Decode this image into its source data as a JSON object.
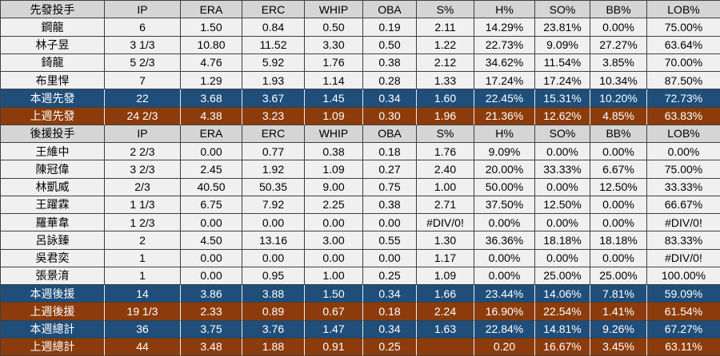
{
  "colors": {
    "header_bg": "#d5d5d5",
    "row_bg": "#f0f0f0",
    "blue": "#1f4e7a",
    "brown": "#8c3c0c",
    "grid": "#404040",
    "grid_light": "#e8e8e8",
    "text_dark": "#000000",
    "text_light": "#ffffff"
  },
  "table": {
    "column_headers": [
      "IP",
      "ERA",
      "ERC",
      "WHIP",
      "OBA",
      "S%",
      "H%",
      "SO%",
      "BB%",
      "LOB%"
    ],
    "section_titles": [
      "先發投手",
      "後援投手"
    ],
    "rows": [
      {
        "style": "header",
        "cells": [
          "先發投手",
          "IP",
          "ERA",
          "ERC",
          "WHIP",
          "OBA",
          "S%",
          "H%",
          "SO%",
          "BB%",
          "LOB%"
        ]
      },
      {
        "style": "player",
        "cells": [
          "鋼龍",
          "6",
          "1.50",
          "0.84",
          "0.50",
          "0.19",
          "2.11",
          "14.29%",
          "23.81%",
          "0.00%",
          "75.00%"
        ]
      },
      {
        "style": "player",
        "cells": [
          "林子昱",
          "3 1/3",
          "10.80",
          "11.52",
          "3.30",
          "0.50",
          "1.22",
          "22.73%",
          "9.09%",
          "27.27%",
          "63.64%"
        ]
      },
      {
        "style": "player",
        "cells": [
          "錡龍",
          "5 2/3",
          "4.76",
          "5.92",
          "1.76",
          "0.38",
          "2.12",
          "34.62%",
          "11.54%",
          "3.85%",
          "70.00%"
        ]
      },
      {
        "style": "player",
        "cells": [
          "布里悍",
          "7",
          "1.29",
          "1.93",
          "1.14",
          "0.28",
          "1.33",
          "17.24%",
          "17.24%",
          "10.34%",
          "87.50%"
        ]
      },
      {
        "style": "week-blue",
        "cells": [
          "本週先發",
          "22",
          "3.68",
          "3.67",
          "1.45",
          "0.34",
          "1.60",
          "22.45%",
          "15.31%",
          "10.20%",
          "72.73%"
        ]
      },
      {
        "style": "week-brown",
        "cells": [
          "上週先發",
          "24 2/3",
          "4.38",
          "3.23",
          "1.09",
          "0.30",
          "1.96",
          "21.36%",
          "12.62%",
          "4.85%",
          "63.83%"
        ]
      },
      {
        "style": "header",
        "cells": [
          "後援投手",
          "IP",
          "ERA",
          "ERC",
          "WHIP",
          "OBA",
          "S%",
          "H%",
          "SO%",
          "BB%",
          "LOB%"
        ]
      },
      {
        "style": "player",
        "cells": [
          "王維中",
          "2 2/3",
          "0.00",
          "0.77",
          "0.38",
          "0.18",
          "1.76",
          "9.09%",
          "0.00%",
          "0.00%",
          "0.00%"
        ]
      },
      {
        "style": "player",
        "cells": [
          "陳冠偉",
          "3 2/3",
          "2.45",
          "1.92",
          "1.09",
          "0.27",
          "2.40",
          "20.00%",
          "33.33%",
          "6.67%",
          "75.00%"
        ]
      },
      {
        "style": "player",
        "cells": [
          "林凱威",
          "2/3",
          "40.50",
          "50.35",
          "9.00",
          "0.75",
          "1.00",
          "50.00%",
          "0.00%",
          "12.50%",
          "33.33%"
        ]
      },
      {
        "style": "player",
        "cells": [
          "王躍霖",
          "1 1/3",
          "6.75",
          "7.92",
          "2.25",
          "0.38",
          "2.71",
          "37.50%",
          "12.50%",
          "0.00%",
          "66.67%"
        ]
      },
      {
        "style": "player",
        "cells": [
          "羅華韋",
          "1 2/3",
          "0.00",
          "0.00",
          "0.00",
          "0.00",
          "#DIV/0!",
          "0.00%",
          "0.00%",
          "0.00%",
          "#DIV/0!"
        ]
      },
      {
        "style": "player",
        "cells": [
          "呂詠臻",
          "2",
          "4.50",
          "13.16",
          "3.00",
          "0.55",
          "1.30",
          "36.36%",
          "18.18%",
          "18.18%",
          "83.33%"
        ]
      },
      {
        "style": "player",
        "cells": [
          "吳君奕",
          "1",
          "0.00",
          "0.00",
          "0.00",
          "0.00",
          "1.17",
          "0.00%",
          "0.00%",
          "0.00%",
          "#DIV/0!"
        ]
      },
      {
        "style": "player",
        "cells": [
          "張景淯",
          "1",
          "0.00",
          "0.95",
          "1.00",
          "0.25",
          "1.09",
          "0.00%",
          "25.00%",
          "25.00%",
          "100.00%"
        ]
      },
      {
        "style": "week-blue",
        "cells": [
          "本週後援",
          "14",
          "3.86",
          "3.88",
          "1.50",
          "0.34",
          "1.66",
          "23.44%",
          "14.06%",
          "7.81%",
          "59.09%"
        ]
      },
      {
        "style": "week-brown",
        "cells": [
          "上週後援",
          "19 1/3",
          "2.33",
          "0.89",
          "0.67",
          "0.18",
          "2.24",
          "16.90%",
          "22.54%",
          "1.41%",
          "61.54%"
        ]
      },
      {
        "style": "week-blue",
        "cells": [
          "本週總計",
          "36",
          "3.75",
          "3.76",
          "1.47",
          "0.34",
          "1.63",
          "22.84%",
          "14.81%",
          "9.26%",
          "67.27%"
        ]
      },
      {
        "style": "week-brown",
        "cells": [
          "上週總計",
          "44",
          "3.48",
          "1.88",
          "0.91",
          "0.25",
          "",
          "0.20",
          "16.67%",
          "3.45%",
          "63.11%"
        ]
      }
    ]
  }
}
